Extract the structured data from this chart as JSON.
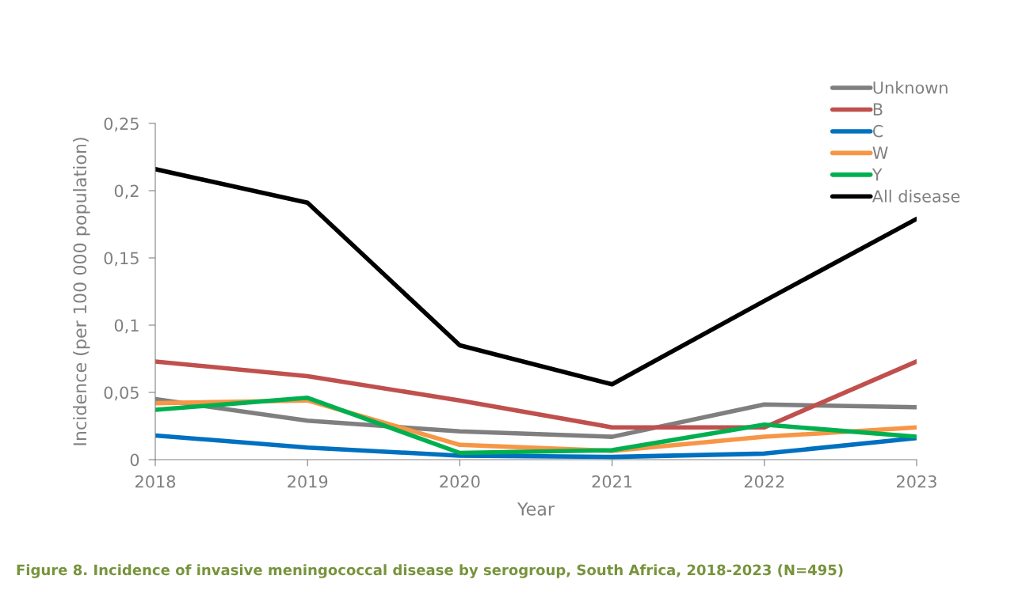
{
  "chart_data": {
    "type": "line",
    "xlabel": "Year",
    "ylabel": "Incidence (per 100 000 population)",
    "categories": [
      "2018",
      "2019",
      "2020",
      "2021",
      "2022",
      "2023"
    ],
    "series": [
      {
        "name": "Unknown",
        "color": "#7f7f7f",
        "values": [
          0.045,
          0.029,
          0.021,
          0.017,
          0.041,
          0.039
        ]
      },
      {
        "name": "B",
        "color": "#c0504d",
        "values": [
          0.073,
          0.062,
          0.044,
          0.024,
          0.024,
          0.073
        ]
      },
      {
        "name": "C",
        "color": "#0070c0",
        "values": [
          0.018,
          0.009,
          0.003,
          0.002,
          0.0045,
          0.016
        ]
      },
      {
        "name": "W",
        "color": "#f79646",
        "values": [
          0.042,
          0.044,
          0.011,
          0.0065,
          0.017,
          0.024
        ]
      },
      {
        "name": "Y",
        "color": "#00b050",
        "values": [
          0.037,
          0.046,
          0.005,
          0.007,
          0.026,
          0.017
        ]
      },
      {
        "name": "All disease",
        "color": "#000000",
        "values": [
          0.216,
          0.191,
          0.085,
          0.056,
          0.118,
          0.179
        ]
      }
    ],
    "ylim": [
      0,
      0.25
    ],
    "yticks": [
      {
        "value": 0,
        "label": "0"
      },
      {
        "value": 0.05,
        "label": "0,05"
      },
      {
        "value": 0.1,
        "label": "0,1"
      },
      {
        "value": 0.15,
        "label": "0,15"
      },
      {
        "value": 0.2,
        "label": "0,2"
      },
      {
        "value": 0.25,
        "label": "0,25"
      }
    ],
    "grid": false,
    "legend": "top right",
    "marker": "none",
    "line_style": "solid",
    "annotations": [
      "Figure 8. Incidence of invasive meningococcal disease by serogroup, South Africa, 2018-2023 (N=495)"
    ]
  }
}
